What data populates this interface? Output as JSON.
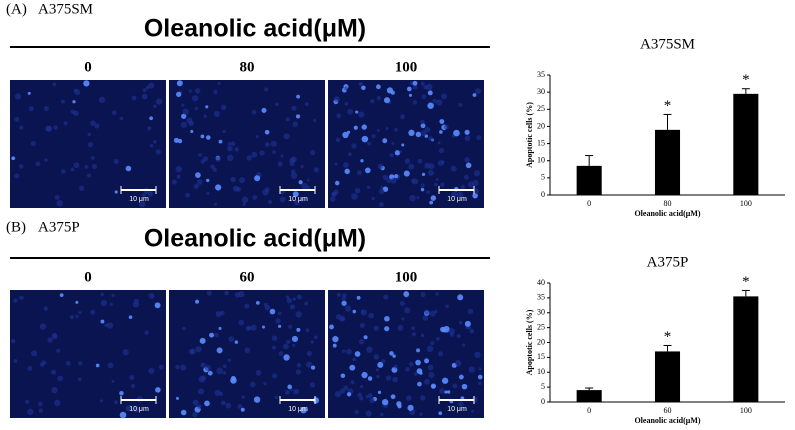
{
  "panels": [
    {
      "label": "(A)",
      "cell_line": "A375SM",
      "heading": "Oleanolic acid(μM)",
      "doses": [
        "0",
        "80",
        "100"
      ],
      "scale_bar": "10 μm"
    },
    {
      "label": "(B)",
      "cell_line": "A375P",
      "heading": "Oleanolic acid(μM)",
      "doses": [
        "0",
        "60",
        "100"
      ],
      "scale_bar": "10 μm"
    }
  ],
  "chart_data": [
    {
      "type": "bar",
      "title": "A375SM",
      "xlabel": "Oleanolic acid(μM)",
      "ylabel": "Apoptotic cells (%)",
      "categories": [
        "0",
        "80",
        "100"
      ],
      "values": [
        8.5,
        19,
        29.5
      ],
      "errors": [
        3,
        4.5,
        1.5
      ],
      "significance": [
        null,
        "*",
        "*"
      ],
      "color": "#000000",
      "ylim": [
        0,
        35
      ],
      "yticks": [
        0,
        5,
        10,
        15,
        20,
        25,
        30,
        35
      ]
    },
    {
      "type": "bar",
      "title": "A375P",
      "xlabel": "Oleanolic acid(μM)",
      "ylabel": "Apoptotic cells (%)",
      "categories": [
        "0",
        "60",
        "100"
      ],
      "values": [
        4,
        17,
        35.5
      ],
      "errors": [
        0.7,
        2,
        2
      ],
      "significance": [
        null,
        "*",
        "*"
      ],
      "color": "#000000",
      "ylim": [
        0,
        40
      ],
      "yticks": [
        0,
        5,
        10,
        15,
        20,
        25,
        30,
        35,
        40
      ]
    }
  ]
}
